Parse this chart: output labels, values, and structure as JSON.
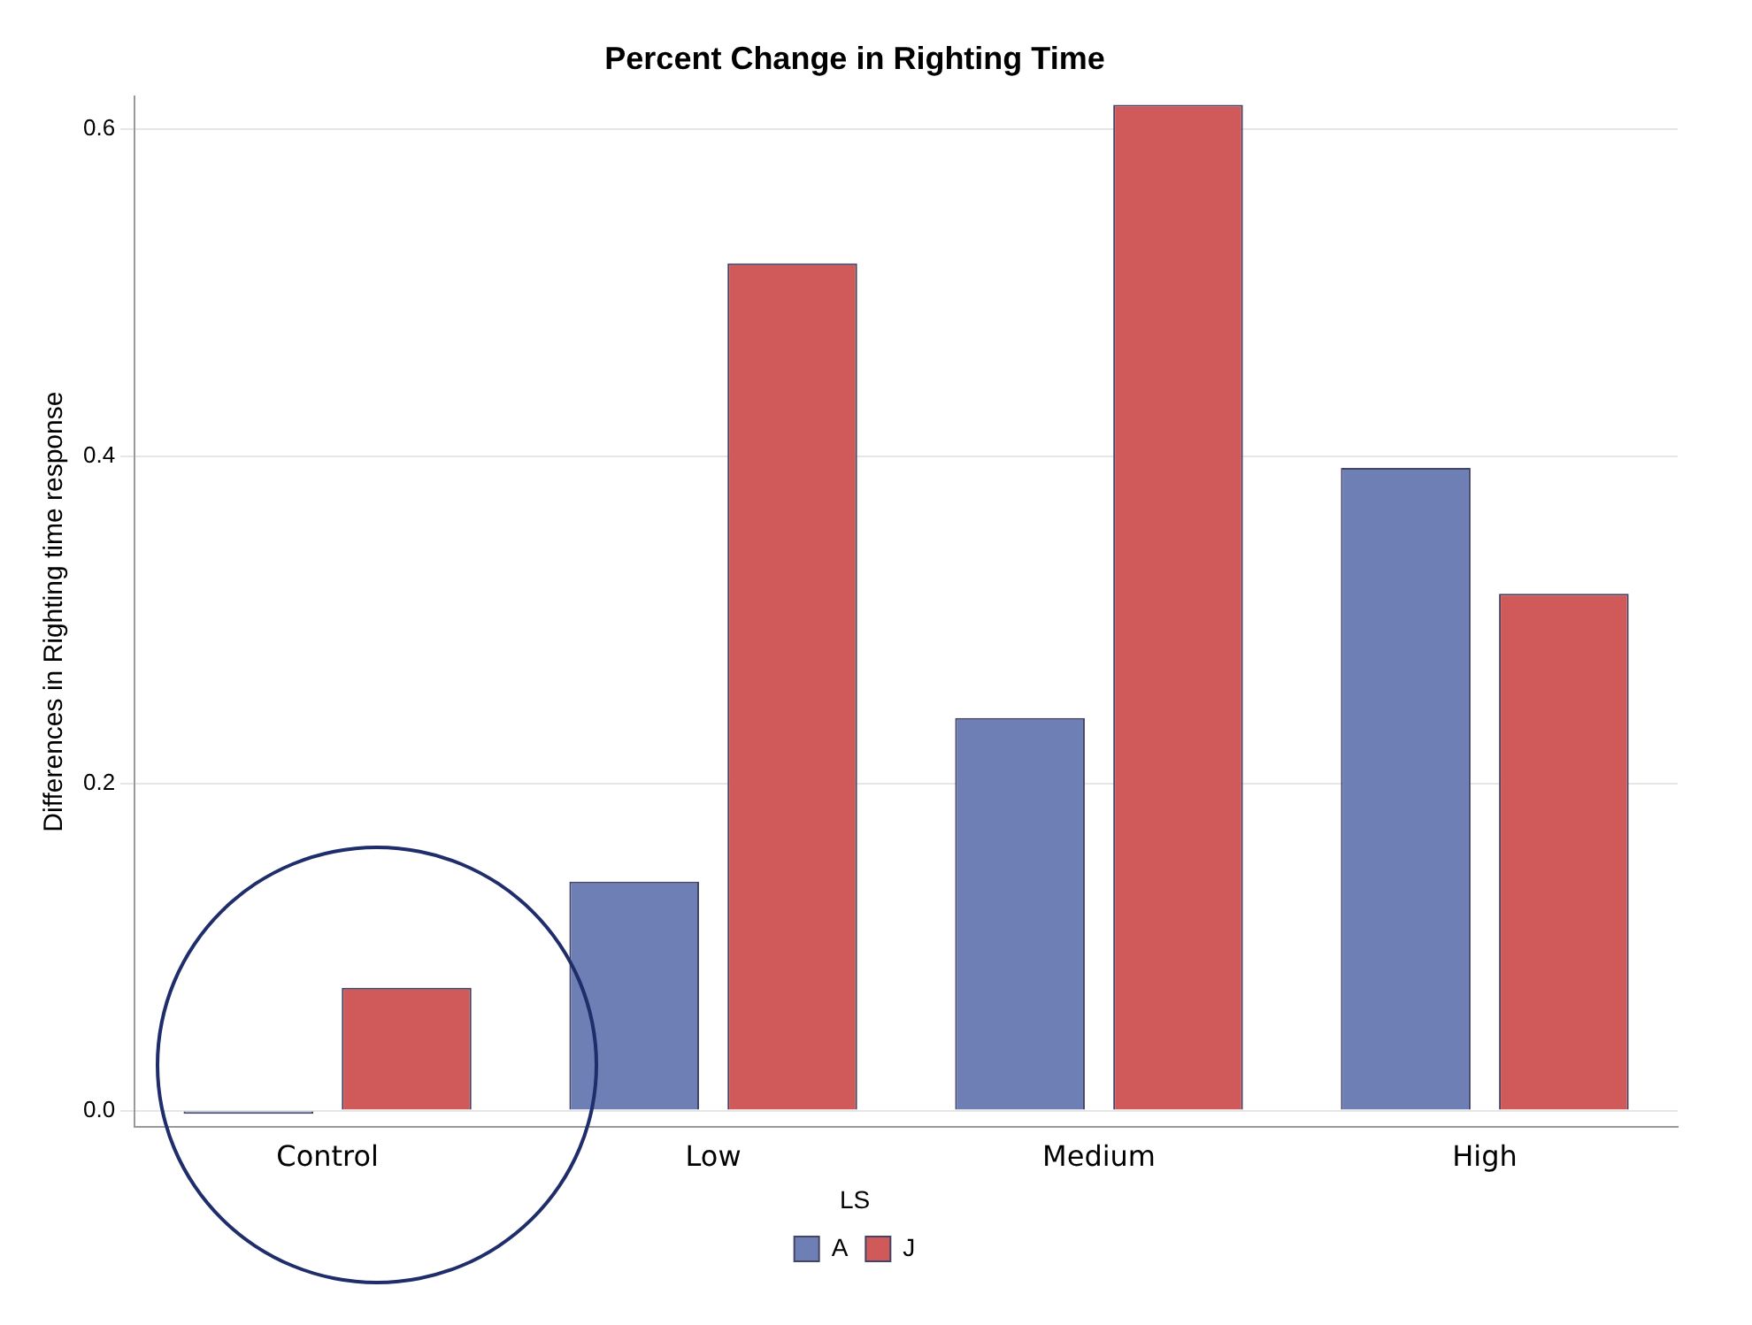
{
  "chart_data": {
    "type": "bar",
    "title": "Percent Change in Righting Time",
    "ylabel": "Differences in Righting time response",
    "legend_title": "LS",
    "categories": [
      "Control",
      "Low",
      "Medium",
      "High"
    ],
    "series": [
      {
        "name": "A",
        "color": "#6e7fb5",
        "values": [
          -0.002,
          0.14,
          0.24,
          0.393
        ]
      },
      {
        "name": "J",
        "color": "#d05a5a",
        "values": [
          0.075,
          0.518,
          0.615,
          0.316
        ]
      }
    ],
    "ylim": [
      -0.01,
      0.62
    ],
    "yticks": [
      {
        "value": 0,
        "label": "0.0"
      },
      0.2,
      0.4,
      0.6
    ],
    "grid": "y",
    "legend": "bottom"
  }
}
